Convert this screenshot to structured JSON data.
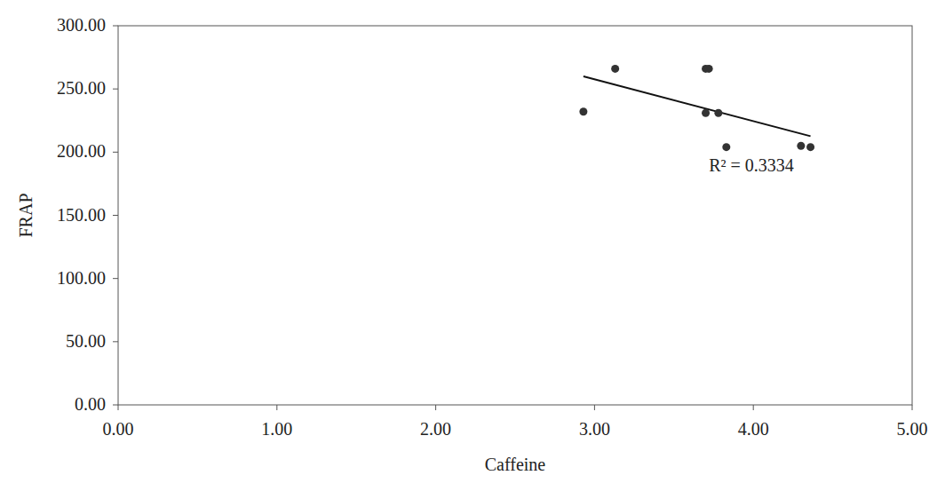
{
  "chart_data": {
    "type": "scatter",
    "x_label": "Caffeine",
    "y_label": "FRAP",
    "annotation": "R² = 0.3334",
    "x": [
      2.93,
      3.13,
      3.7,
      3.72,
      3.7,
      3.78,
      3.83,
      4.3,
      4.36
    ],
    "values": [
      232,
      266,
      266,
      266,
      231,
      231,
      204,
      205,
      204
    ],
    "color": "#333333",
    "marker": "circle",
    "xlim": [
      0,
      5
    ],
    "xticks": [
      {
        "value": 0,
        "label": "0.00"
      },
      {
        "value": 1,
        "label": "1.00"
      },
      {
        "value": 2,
        "label": "2.00"
      },
      {
        "value": 3,
        "label": "3.00"
      },
      {
        "value": 4,
        "label": "4.00"
      },
      {
        "value": 5,
        "label": "5.00"
      }
    ],
    "ylim": [
      0,
      300
    ],
    "yticks": [
      {
        "value": 0,
        "label": "0.00"
      },
      {
        "value": 50,
        "label": "50.00"
      },
      {
        "value": 100,
        "label": "100.00"
      },
      {
        "value": 150,
        "label": "150.00"
      },
      {
        "value": 200,
        "label": "200.00"
      },
      {
        "value": 250,
        "label": "250.00"
      },
      {
        "value": 300,
        "label": "300.00"
      }
    ],
    "grid": false
  }
}
